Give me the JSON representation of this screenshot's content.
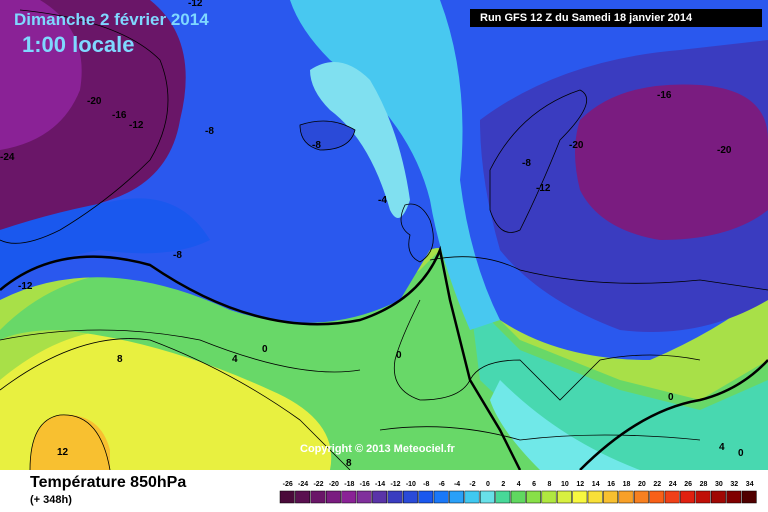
{
  "header": {
    "date": "Dimanche 2 février 2014",
    "local_time": "1:00 locale",
    "run_info": "Run GFS 12 Z du Samedi 18 janvier 2014"
  },
  "footer": {
    "variable": "Température 850hPa",
    "lead": "(+ 348h)",
    "copyright": "Copyright © 2013 Meteociel.fr"
  },
  "scale": {
    "labels": [
      "-26",
      "-24",
      "-22",
      "-20",
      "-18",
      "-16",
      "-14",
      "-12",
      "-10",
      "-8",
      "-6",
      "-4",
      "-2",
      "0",
      "2",
      "4",
      "6",
      "8",
      "10",
      "12",
      "14",
      "16",
      "18",
      "20",
      "22",
      "24",
      "26",
      "28",
      "30",
      "32",
      "34"
    ],
    "colors": [
      "#4a0a3a",
      "#5a1050",
      "#6a1668",
      "#7a1c80",
      "#8a2296",
      "#80309c",
      "#5a34a8",
      "#3a3cc0",
      "#2a4ad8",
      "#1a58ee",
      "#1a78f8",
      "#2aa0f8",
      "#40c8f0",
      "#68e0e8",
      "#48d898",
      "#60d860",
      "#88e048",
      "#b0e840",
      "#d8f040",
      "#f8f840",
      "#f8e038",
      "#f8c030",
      "#f8a028",
      "#f88020",
      "#f86018",
      "#f04018",
      "#e02010",
      "#c01008",
      "#a00804",
      "#800000",
      "#500000"
    ]
  },
  "map_labels": [
    {
      "text": "-12"
    },
    {
      "text": "-20"
    },
    {
      "text": "-16"
    },
    {
      "text": "-12"
    },
    {
      "text": "-8"
    },
    {
      "text": "-24"
    },
    {
      "text": "-8"
    },
    {
      "text": "-4"
    },
    {
      "text": "-8"
    },
    {
      "text": "-12"
    },
    {
      "text": "-8"
    },
    {
      "text": "-12"
    },
    {
      "text": "-20"
    },
    {
      "text": "-16"
    },
    {
      "text": "-20"
    },
    {
      "text": "0"
    },
    {
      "text": "8"
    },
    {
      "text": "4"
    },
    {
      "text": "0"
    },
    {
      "text": "12"
    },
    {
      "text": "8"
    },
    {
      "text": "0"
    },
    {
      "text": "4"
    },
    {
      "text": "0"
    }
  ],
  "colors": {
    "title_color": "#7fd8ff",
    "run_box_bg": "#000000"
  }
}
